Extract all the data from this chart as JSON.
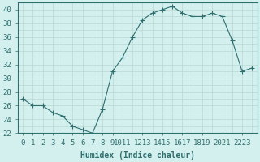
{
  "x": [
    0,
    1,
    2,
    3,
    4,
    5,
    6,
    7,
    8,
    9,
    10,
    11,
    12,
    13,
    14,
    15,
    16,
    17,
    18,
    19,
    20,
    21,
    22,
    23
  ],
  "y": [
    27,
    26,
    26,
    25,
    24.5,
    23,
    22.5,
    22,
    25.5,
    31,
    33,
    36,
    38.5,
    39.5,
    40,
    40.5,
    39.5,
    39,
    39,
    39.5,
    39,
    35.5,
    31,
    31.5
  ],
  "line_color": "#2d6e6e",
  "marker": "+",
  "marker_size": 4,
  "bg_color": "#d4f0ee",
  "grid_color": "#b8d8d4",
  "xlabel": "Humidex (Indice chaleur)",
  "ylim": [
    22,
    41
  ],
  "xlim": [
    -0.5,
    23.5
  ],
  "yticks": [
    22,
    24,
    26,
    28,
    30,
    32,
    34,
    36,
    38,
    40
  ],
  "xtick_positions": [
    0,
    1,
    2,
    3,
    4,
    5,
    6,
    7,
    8,
    9,
    10,
    12,
    14,
    16,
    18,
    20,
    22
  ],
  "xtick_labels": [
    "0",
    "1",
    "2",
    "3",
    "4",
    "5",
    "6",
    "7",
    "8",
    "9",
    "1011",
    "1213",
    "1415",
    "1617",
    "1819",
    "2021",
    "2223"
  ],
  "axis_color": "#2d6e6e",
  "tick_color": "#2d6e6e",
  "xlabel_color": "#2d6e6e",
  "xlabel_fontsize": 7,
  "tick_fontsize": 6.5
}
